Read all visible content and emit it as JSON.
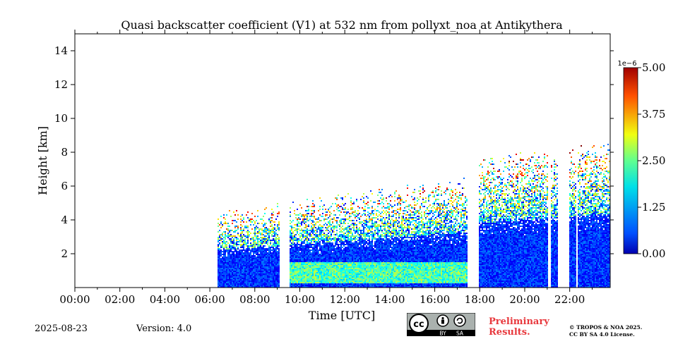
{
  "chart_data": {
    "type": "heatmap",
    "title": "Quasi backscatter coefficient (V1) at 532 nm from pollyxt_noa at Antikythera",
    "xlabel": "Time [UTC]",
    "ylabel": "Height [km]",
    "xlim_hours": [
      0,
      23.8
    ],
    "ylim_km": [
      0,
      15
    ],
    "x_ticks": [
      "00:00",
      "02:00",
      "04:00",
      "06:00",
      "08:00",
      "10:00",
      "12:00",
      "14:00",
      "16:00",
      "18:00",
      "20:00",
      "22:00"
    ],
    "y_ticks": [
      "2",
      "4",
      "6",
      "8",
      "10",
      "12",
      "14"
    ],
    "colorbar": {
      "exponent_label": "1e−6",
      "min": 0.0,
      "max": 5.0,
      "ticks": [
        "0.00",
        "1.25",
        "2.50",
        "3.75",
        "5.00"
      ],
      "colormap": "jet"
    },
    "data_segments_hours": [
      [
        6.3,
        9.1
      ],
      [
        9.5,
        17.4
      ],
      [
        17.95,
        21.0
      ],
      [
        21.1,
        21.45
      ],
      [
        21.95,
        22.25
      ],
      [
        22.35,
        23.8
      ]
    ],
    "signal_top_km_start": 4.5,
    "signal_top_km_end": 7.8,
    "aerosol_layer_km": [
      0.3,
      1.5
    ],
    "grid": false
  },
  "footer": {
    "date": "2025-08-23",
    "version": "Version: 4.0",
    "preliminary_line1": "Preliminary",
    "preliminary_line2": "Results.",
    "copyright_line1": "© TROPOS & NOA 2025.",
    "copyright_line2": "CC BY SA 4.0 License.",
    "license_badge": {
      "cc": "cc",
      "by": "BY",
      "sa": "SA",
      "colors": {
        "bg": "#aab1ae",
        "bar": "#000000"
      }
    }
  },
  "colors": {
    "accent_red": "#e8383d"
  }
}
